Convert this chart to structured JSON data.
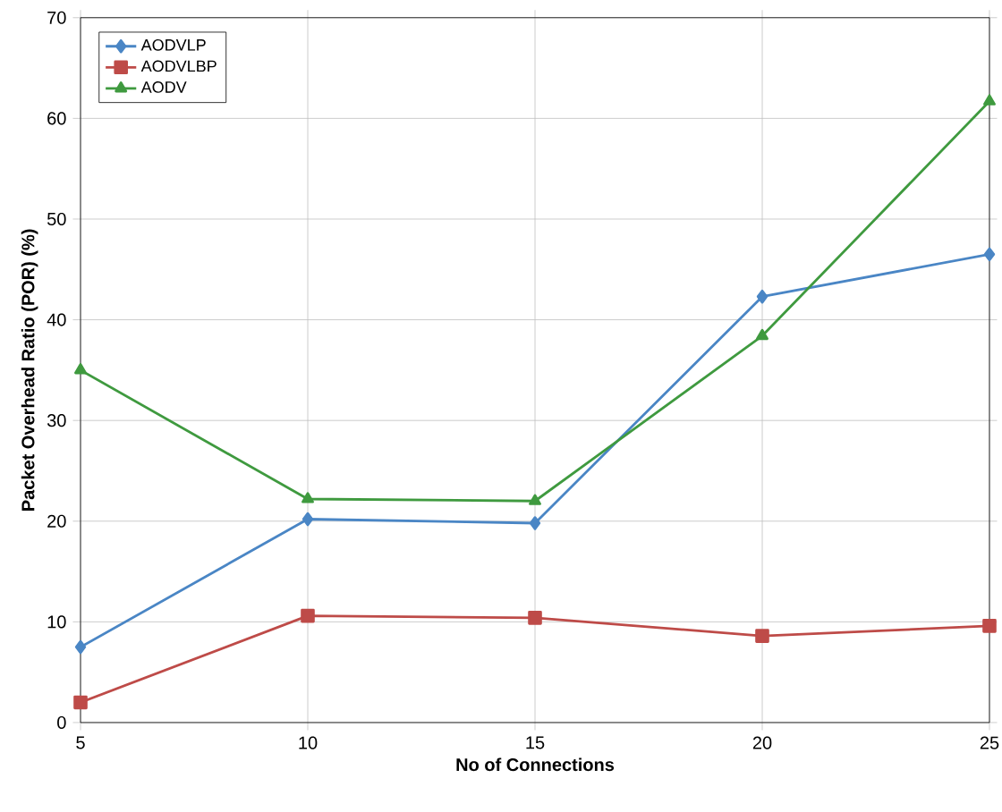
{
  "chart_data": {
    "type": "line",
    "xlabel": "No of Connections",
    "ylabel": "Packet Overhead Ratio (POR) (%)",
    "x": [
      5,
      10,
      15,
      20,
      25
    ],
    "xlim": [
      5,
      25
    ],
    "xticks": [
      5,
      10,
      15,
      20,
      25
    ],
    "ylim": [
      0,
      70
    ],
    "yticks": [
      0,
      10,
      20,
      30,
      40,
      50,
      60,
      70
    ],
    "grid": true,
    "legend": "top left",
    "series": [
      {
        "name": "AODVLP",
        "color": "#4a86c5",
        "marker": "diamond",
        "values": [
          7.5,
          20.2,
          19.8,
          42.3,
          46.5
        ]
      },
      {
        "name": "AODVLBP",
        "color": "#be4b48",
        "marker": "square",
        "values": [
          2.0,
          10.6,
          10.4,
          8.6,
          9.6
        ]
      },
      {
        "name": "AODV",
        "color": "#3f9a3f",
        "marker": "triangle",
        "values": [
          35.0,
          22.2,
          22.0,
          38.4,
          61.7
        ]
      }
    ]
  }
}
